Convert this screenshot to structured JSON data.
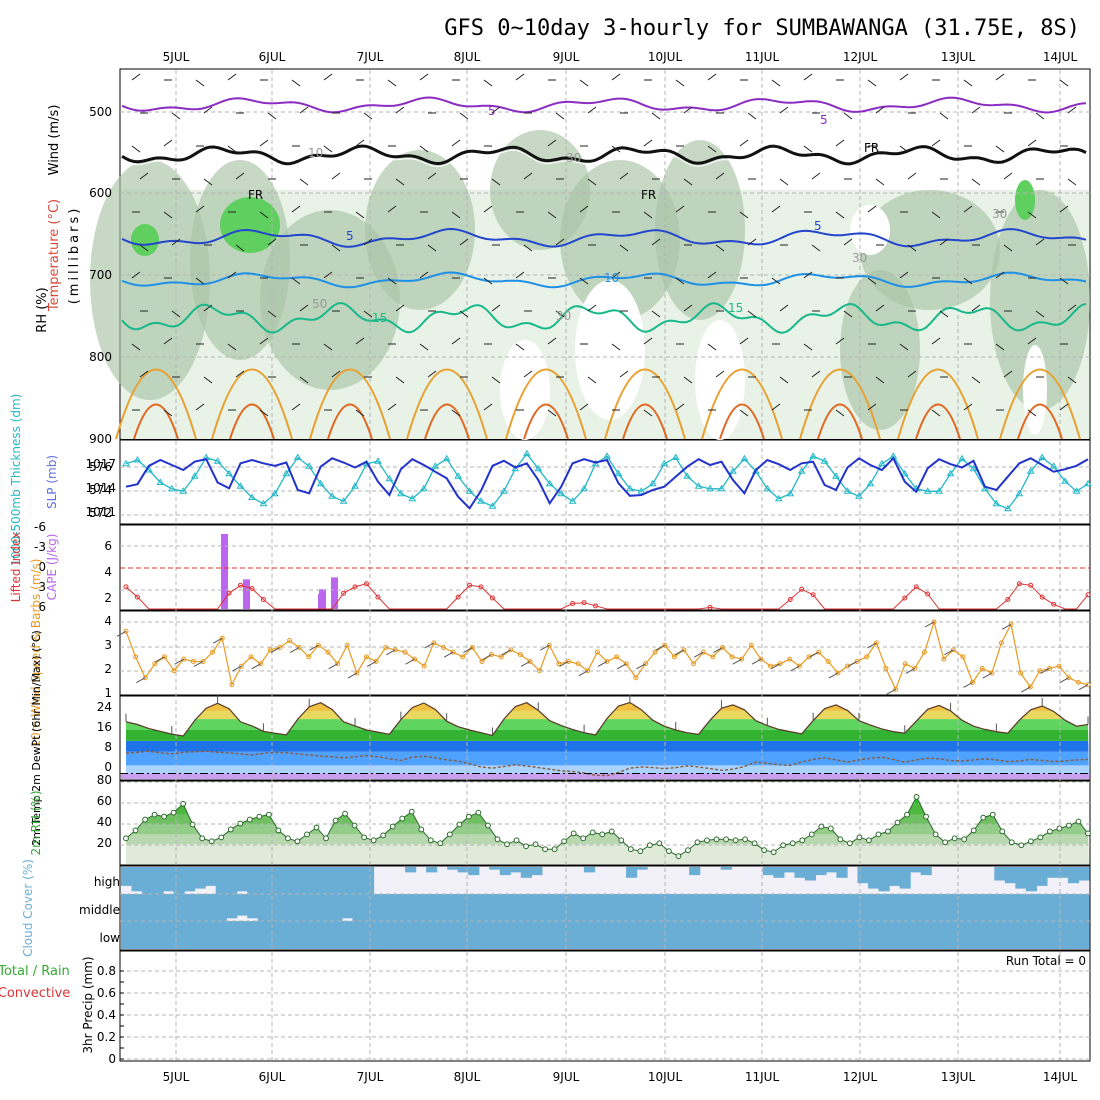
{
  "title": "GFS 0~10day 3-hourly for SUMBAWANGA (31.75E, 8S)",
  "date_labels": [
    "5JUL",
    "6JUL",
    "7JUL",
    "8JUL",
    "9JUL",
    "10JUL",
    "11JUL",
    "12JUL",
    "13JUL",
    "14JUL"
  ],
  "colors": {
    "grid": "#b4b4b4",
    "rh_light": "#e8f2e6",
    "rh_mid": "#a9c3a6",
    "rh_dark": "#7f9b7c",
    "rh_green": "#5fcf5f",
    "thickness": "#22b8c8",
    "slp": "#2233cc",
    "lifted_index": "#dd3333",
    "cape": "#bb66ee",
    "wind10m": "#e89a22",
    "temp_band": "#33aa33",
    "dew_band": "#2a6fd8",
    "cloud": "#6aaed6",
    "cloud_gap": "#f2f0f8"
  },
  "panels": {
    "upper_air": {
      "ylabel_rh": "RH (%)",
      "ylabel_temp": "Temperature (°C)",
      "ylabel_wind": "Wind (m/s)",
      "ylabel_units": "(millibars)",
      "pressure_ticks": [
        "500",
        "600",
        "700",
        "800",
        "900"
      ],
      "contour_labels": [
        "5",
        "5",
        "5",
        "5",
        "10",
        "15",
        "15",
        "FR",
        "FR",
        "FR",
        "10",
        "30",
        "30",
        "50",
        "30",
        "30"
      ]
    },
    "slp": {
      "ylabel_thick": "1000-500mb Thickness (dm)",
      "ylabel_slp": "SLP (mb)",
      "left_ticks": [
        "576",
        "574",
        "572"
      ],
      "right_ticks": [
        "1017",
        "1014",
        "1011"
      ]
    },
    "stability": {
      "ylabel_li": "Lifted Index",
      "ylabel_cape": "CAPE (J/kg)",
      "left_ticks": [
        "-6",
        "-3",
        "0",
        "3",
        "6"
      ],
      "right_ticks": [
        "6",
        "4",
        "2"
      ]
    },
    "wind10": {
      "ylabel": "10m Wind Speed & Barbs (m/s)",
      "ticks": [
        "4",
        "3",
        "2",
        "1"
      ]
    },
    "temp": {
      "ylabel": "2m Temp 2m DewPt (6hr Min/Max) (°C)",
      "ticks": [
        "24",
        "16",
        "8",
        "0"
      ]
    },
    "rh": {
      "ylabel": "2m RH (%)",
      "ticks": [
        "80",
        "60",
        "40",
        "20"
      ]
    },
    "cloud": {
      "ylabel": "Cloud Cover (%)",
      "levels": [
        "high",
        "middle",
        "low"
      ]
    },
    "precip": {
      "ylabel_total": "Total / Rain",
      "ylabel_conv": "Convective",
      "ylabel_units": "3hr Precip (mm)",
      "ticks": [
        "0.8",
        "0.6",
        "0.4",
        "0.2",
        "0"
      ],
      "run_total": "Run Total = 0"
    }
  },
  "chart_data": [
    {
      "type": "line",
      "name": "1000-500mb Thickness",
      "unit": "dm",
      "ylim": [
        571.5,
        577.5
      ],
      "values": [
        576,
        576.3,
        575.5,
        574.5,
        574,
        573.8,
        575,
        576.5,
        576.2,
        575.2,
        574.2,
        573.3,
        572.8,
        573.6,
        575.2,
        576.5,
        575.8,
        574.4,
        573.4,
        573.0,
        574.2,
        576.0,
        576.2,
        574.8,
        573.6,
        573.2,
        574.0,
        575.8,
        576.4,
        575.0,
        573.8,
        573.0,
        572.6,
        573.8,
        575.6,
        576.8,
        575.6,
        574.4,
        573.6,
        573.0,
        574.0,
        576.0,
        576.6,
        575.2,
        574.0,
        573.8,
        574.4,
        576.0,
        576.5,
        575.0,
        574.2,
        574.0,
        574.0,
        575.4,
        576.4,
        575.4,
        574.0,
        573.2,
        573.6,
        575.4,
        576.6,
        576.2,
        575.0,
        573.8,
        573.4,
        574.4,
        576.0,
        576.6,
        575.2,
        574.0,
        573.8,
        573.8,
        575.2,
        576.4,
        575.6,
        574.0,
        572.8,
        572.4,
        573.6,
        575.4,
        576.5,
        575.8,
        574.6,
        573.8,
        574.4
      ]
    },
    {
      "type": "line",
      "name": "SLP",
      "unit": "mb",
      "ylim": [
        1010,
        1019
      ],
      "values": [
        1014,
        1014.3,
        1016.5,
        1017.2,
        1016.6,
        1016.0,
        1017.0,
        1017.3,
        1014.5,
        1013.8,
        1016.8,
        1017.2,
        1016.8,
        1016.5,
        1016.9,
        1013.6,
        1013.2,
        1016.4,
        1017.4,
        1016.9,
        1016.3,
        1017.0,
        1014.6,
        1013.0,
        1016.1,
        1017.3,
        1016.6,
        1015.8,
        1015.0,
        1012.8,
        1011.4,
        1013.5,
        1016.5,
        1017.1,
        1016.3,
        1016.8,
        1014.8,
        1012.0,
        1014.0,
        1016.8,
        1017.3,
        1016.9,
        1017.2,
        1014.4,
        1012.9,
        1013.0,
        1013.6,
        1014.0,
        1015.2,
        1016.4,
        1017.3,
        1016.6,
        1017.0,
        1014.8,
        1013.2,
        1016.0,
        1017.2,
        1016.7,
        1016.0,
        1016.8,
        1017.0,
        1014.2,
        1013.6,
        1016.3,
        1017.4,
        1016.6,
        1016.0,
        1017.4,
        1014.6,
        1013.4,
        1016.2,
        1017.3,
        1016.7,
        1016.3,
        1017.1,
        1014.0,
        1013.6,
        1015.2,
        1016.8,
        1017.4,
        1016.6,
        1015.8,
        1016.1,
        1016.5,
        1017.3
      ]
    },
    {
      "type": "bar",
      "name": "CAPE",
      "unit": "J/kg",
      "ylim": [
        0,
        8
      ],
      "categories_hours": [
        24,
        27,
        30,
        33,
        48,
        51,
        54
      ],
      "values": [
        7.6,
        0.0,
        3.0,
        0.0,
        1.5,
        2.0,
        3.2
      ]
    },
    {
      "type": "line",
      "name": "Lifted Index",
      "ylim": [
        6,
        -6
      ],
      "values": [
        3.2,
        4.5,
        6,
        6,
        6,
        6,
        6,
        6,
        6,
        4,
        3,
        3.4,
        4.8,
        6,
        6,
        6,
        6,
        6,
        6,
        4,
        3.2,
        2.8,
        4.5,
        6,
        6,
        6,
        6,
        6,
        6,
        4.5,
        3.0,
        3.2,
        4.6,
        6,
        6,
        6,
        6,
        6,
        6,
        5.3,
        5.2,
        5.6,
        6,
        6,
        6,
        6,
        6,
        6,
        6,
        6,
        6,
        5.8,
        6,
        6,
        6,
        6,
        6,
        6,
        4.8,
        3.5,
        4.2,
        6,
        6,
        6,
        6,
        6,
        6,
        6,
        4.6,
        3.2,
        4.1,
        6,
        6,
        6,
        6,
        6,
        6,
        4.8,
        2.8,
        3.0,
        4.5,
        5.4,
        6,
        6,
        4.2
      ]
    },
    {
      "type": "line",
      "name": "10m Wind Speed",
      "unit": "m/s",
      "ylim": [
        1,
        4.4
      ],
      "values": [
        3.7,
        2.6,
        1.7,
        2.3,
        2.6,
        2.0,
        2.5,
        2.4,
        2.4,
        2.8,
        3.4,
        1.4,
        2.2,
        2.6,
        2.3,
        2.9,
        3.0,
        3.3,
        3.0,
        2.6,
        3.1,
        2.8,
        2.3,
        3.1,
        1.9,
        2.6,
        2.4,
        3.0,
        2.9,
        2.8,
        2.5,
        2.2,
        3.2,
        3.0,
        2.8,
        2.6,
        3.0,
        2.4,
        2.7,
        2.6,
        2.9,
        2.7,
        2.4,
        2.0,
        3.1,
        2.3,
        2.4,
        2.3,
        2.0,
        2.8,
        2.4,
        2.6,
        2.3,
        1.7,
        2.3,
        2.8,
        3.1,
        2.6,
        2.9,
        2.3,
        2.8,
        2.6,
        3.0,
        2.6,
        2.5,
        3.1,
        2.5,
        2.2,
        2.3,
        2.5,
        2.2,
        2.6,
        2.8,
        2.4,
        1.9,
        2.2,
        2.4,
        2.6,
        3.2,
        2.1,
        1.2,
        2.3,
        2.1,
        2.8,
        4.1,
        2.5,
        2.9,
        2.6,
        1.5,
        2.1,
        1.9,
        3.2,
        4.0,
        1.9,
        1.3,
        2.0,
        2.1,
        2.2,
        1.7,
        1.5,
        1.4
      ]
    },
    {
      "type": "area",
      "name": "2m Temp",
      "unit": "°C",
      "ylim": [
        -2,
        27
      ],
      "values": [
        19,
        18,
        16.5,
        15.5,
        14.5,
        13.8,
        19.5,
        24,
        25.8,
        23.8,
        19,
        17.5,
        15.5,
        14.8,
        14.2,
        20,
        24.5,
        26,
        23.5,
        19,
        17.5,
        16,
        15.2,
        14.4,
        19.8,
        24.2,
        25.9,
        23.6,
        19.2,
        17.2,
        16,
        15,
        14,
        20,
        24.6,
        26,
        23.2,
        19.4,
        17.6,
        16.2,
        15,
        14.2,
        20.2,
        24.8,
        26.1,
        23.4,
        19.6,
        17.4,
        16,
        15,
        14.4,
        19.6,
        24,
        25.2,
        23.4,
        19.4,
        17.6,
        16.2,
        15.4,
        14.6,
        19.4,
        23.8,
        25.2,
        23.2,
        19.4,
        17.8,
        16.4,
        15.4,
        14.8,
        19.2,
        23.6,
        25,
        23,
        19.6,
        17.4,
        16.2,
        15.4,
        14.8,
        19.6,
        23.4,
        24.8,
        22.8,
        19.6,
        17.4,
        18
      ]
    },
    {
      "type": "line",
      "name": "2m DewPt",
      "unit": "°C",
      "values": [
        7.5,
        7.8,
        8.2,
        7.6,
        7.2,
        7.8,
        8.0,
        8.2,
        7.8,
        7.6,
        7.2,
        6.8,
        7.4,
        7.8,
        7.6,
        7.2,
        6.8,
        6.4,
        6.2,
        5.8,
        6.2,
        6.6,
        6.2,
        5.4,
        4.8,
        6.0,
        6.4,
        5.8,
        5.0,
        4.6,
        3.6,
        2.4,
        2.0,
        2.6,
        3.2,
        2.8,
        2.2,
        1.6,
        1.0,
        0.8,
        0.2,
        -0.6,
        -0.8,
        0.4,
        2.0,
        2.4,
        2.2,
        1.8,
        2.2,
        2.8,
        2.4,
        1.8,
        1.2,
        1.6,
        2.6,
        4.2,
        3.8,
        3.2,
        3.0,
        4.2,
        5.2,
        5.8,
        5.0,
        4.2,
        5.0,
        5.6,
        6.0,
        5.2,
        4.2,
        5.0,
        5.6,
        5.4,
        4.8,
        4.6,
        5.0,
        5.4,
        5.0,
        4.4,
        4.6,
        5.2,
        4.8,
        4.4,
        4.6,
        5.0,
        5.2
      ]
    },
    {
      "type": "area",
      "name": "2m RH",
      "unit": "%",
      "ylim": [
        10,
        90
      ],
      "values": [
        36,
        44,
        55,
        60,
        58,
        62,
        71,
        50,
        36,
        33,
        37,
        45,
        51,
        55,
        58,
        60,
        44,
        36,
        33,
        40,
        47,
        36,
        54,
        61,
        49,
        37,
        34,
        39,
        48,
        56,
        63,
        45,
        34,
        31,
        40,
        50,
        58,
        62,
        49,
        35,
        30,
        34,
        28,
        30,
        25,
        25,
        33,
        41,
        36,
        42,
        40,
        43,
        34,
        25,
        23,
        29,
        31,
        23,
        18,
        24,
        32,
        34,
        35,
        35,
        34,
        35,
        31,
        24,
        22,
        29,
        31,
        34,
        40,
        48,
        46,
        35,
        31,
        37,
        34,
        40,
        43,
        52,
        60,
        78,
        58,
        40,
        32,
        36,
        35,
        44,
        57,
        60,
        43,
        32,
        29,
        33,
        37,
        43,
        46,
        49,
        53,
        41
      ]
    },
    {
      "type": "bar",
      "name": "High Cloud Cover",
      "unit": "%",
      "ylim": [
        0,
        100
      ],
      "values": [
        70,
        90,
        100,
        100,
        90,
        100,
        90,
        80,
        70,
        100,
        100,
        90,
        100,
        100,
        100,
        100,
        100,
        100,
        100,
        100,
        100,
        100,
        100,
        100,
        0,
        0,
        0,
        20,
        0,
        20,
        0,
        10,
        20,
        30,
        0,
        10,
        30,
        20,
        40,
        30,
        0,
        0,
        0,
        0,
        20,
        0,
        0,
        0,
        40,
        10,
        0,
        0,
        0,
        0,
        30,
        0,
        0,
        10,
        0,
        0,
        0,
        30,
        40,
        20,
        40,
        50,
        30,
        20,
        40,
        0,
        60,
        80,
        90,
        70,
        80,
        20,
        30,
        0,
        0,
        0,
        0,
        0,
        0,
        50,
        60,
        80,
        90,
        70,
        40,
        40,
        60,
        50
      ]
    },
    {
      "type": "bar",
      "name": "Mid Cloud Cover",
      "unit": "%",
      "ylim": [
        0,
        100
      ],
      "values": [
        100,
        100,
        100,
        100,
        100,
        100,
        100,
        100,
        100,
        100,
        90,
        80,
        90,
        100,
        100,
        100,
        100,
        100,
        100,
        100,
        100,
        90,
        100,
        100,
        100,
        100,
        100,
        100,
        100,
        100,
        100,
        100,
        100,
        100,
        100,
        100,
        100,
        100,
        100,
        100,
        100,
        100,
        100,
        100,
        100,
        100,
        100,
        100,
        100,
        100,
        100,
        100,
        100,
        100,
        100,
        100,
        100,
        100,
        100,
        100,
        100,
        100,
        100,
        100,
        100,
        100,
        100,
        100,
        100,
        100,
        100,
        100,
        100,
        100,
        100,
        100,
        100,
        100,
        100,
        100,
        100,
        100,
        100,
        100,
        100,
        100,
        100,
        100,
        100,
        100,
        100,
        100
      ]
    },
    {
      "type": "bar",
      "name": "Low Cloud Cover",
      "unit": "%",
      "ylim": [
        0,
        100
      ],
      "values": [
        100,
        100,
        100,
        100,
        100,
        100,
        100,
        100,
        100,
        100,
        100,
        100,
        100,
        100,
        100,
        100,
        100,
        100,
        100,
        100,
        100,
        100,
        100,
        100,
        100,
        100,
        100,
        100,
        100,
        100,
        100,
        100,
        100,
        100,
        100,
        100,
        100,
        100,
        100,
        100,
        100,
        100,
        100,
        100,
        100,
        100,
        100,
        100,
        100,
        100,
        100,
        100,
        100,
        100,
        100,
        100,
        100,
        100,
        100,
        100,
        100,
        100,
        100,
        100,
        100,
        100,
        100,
        100,
        100,
        100,
        100,
        100,
        100,
        100,
        100,
        100,
        100,
        100,
        100,
        100,
        100,
        100,
        100,
        100,
        100,
        100,
        100,
        100,
        100,
        100,
        100,
        100
      ]
    },
    {
      "type": "bar",
      "name": "3hr Precip",
      "unit": "mm",
      "ylim": [
        0,
        0.9
      ],
      "values": [
        0,
        0,
        0,
        0,
        0,
        0,
        0,
        0,
        0,
        0,
        0,
        0,
        0,
        0,
        0,
        0,
        0,
        0,
        0,
        0,
        0,
        0,
        0,
        0,
        0,
        0,
        0,
        0,
        0,
        0,
        0,
        0,
        0,
        0,
        0,
        0,
        0,
        0,
        0,
        0,
        0,
        0,
        0,
        0,
        0,
        0,
        0,
        0,
        0,
        0,
        0,
        0,
        0,
        0,
        0,
        0,
        0,
        0,
        0,
        0,
        0,
        0,
        0,
        0,
        0,
        0,
        0,
        0,
        0,
        0,
        0,
        0,
        0,
        0,
        0,
        0,
        0,
        0,
        0,
        0,
        0,
        0,
        0,
        0,
        0
      ]
    }
  ]
}
